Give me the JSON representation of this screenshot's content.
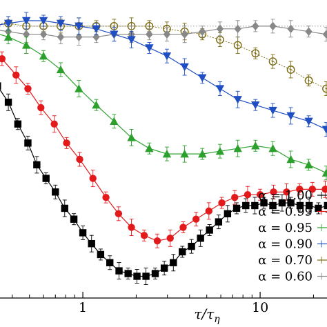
{
  "chart_data": {
    "type": "line",
    "xlabel": "τ/τ_η",
    "xlabel_main": "τ/τ",
    "xlabel_sub": "η",
    "x_scale": "log",
    "xlim": [
      0.28,
      28
    ],
    "y_scale": "linear",
    "ylim": [
      0,
      1.02
    ],
    "x_ticks": [
      1,
      10
    ],
    "x_tick_labels": [
      "1",
      "10"
    ],
    "reference_line": 0.88,
    "legend_position": "bottom-right",
    "series": [
      {
        "name": "α = 1.00",
        "color": "#000000",
        "marker": "square",
        "x": [
          0.3,
          0.33,
          0.38,
          0.43,
          0.49,
          0.55,
          0.62,
          0.7,
          0.79,
          0.89,
          1.0,
          1.12,
          1.26,
          1.42,
          1.6,
          1.8,
          2.02,
          2.27,
          2.56,
          2.88,
          3.24,
          3.64,
          4.1,
          4.61,
          5.18,
          5.83,
          6.55,
          7.37,
          8.3,
          9.33,
          10.5,
          11.8,
          13.3,
          14.9,
          16.8,
          18.9,
          21.3,
          24,
          27
        ],
        "y": [
          0.85,
          0.78,
          0.72,
          0.64,
          0.57,
          0.49,
          0.44,
          0.39,
          0.33,
          0.29,
          0.24,
          0.2,
          0.16,
          0.13,
          0.1,
          0.09,
          0.08,
          0.08,
          0.09,
          0.11,
          0.13,
          0.17,
          0.19,
          0.22,
          0.25,
          0.28,
          0.31,
          0.33,
          0.34,
          0.34,
          0.35,
          0.34,
          0.35,
          0.35,
          0.34,
          0.34,
          0.33,
          0.34,
          0.33
        ]
      },
      {
        "name": "α = 0.99",
        "color": "#e31a1c",
        "marker": "circle",
        "x": [
          0.3,
          0.35,
          0.42,
          0.49,
          0.58,
          0.69,
          0.81,
          0.96,
          1.14,
          1.35,
          1.59,
          1.88,
          2.22,
          2.63,
          3.11,
          3.68,
          4.35,
          5.14,
          6.08,
          7.19,
          8.5,
          10,
          11.9,
          14.1,
          16.7,
          19.7,
          23.3,
          27
        ],
        "y": [
          0.92,
          0.88,
          0.82,
          0.77,
          0.7,
          0.64,
          0.57,
          0.51,
          0.44,
          0.37,
          0.31,
          0.26,
          0.23,
          0.21,
          0.22,
          0.26,
          0.29,
          0.32,
          0.35,
          0.37,
          0.38,
          0.38,
          0.39,
          0.39,
          0.4,
          0.4,
          0.4,
          0.4
        ]
      },
      {
        "name": "α = 0.95",
        "color": "#2ca02c",
        "marker": "triangle",
        "x": [
          0.3,
          0.38,
          0.48,
          0.6,
          0.75,
          0.95,
          1.19,
          1.5,
          1.88,
          2.37,
          2.98,
          3.75,
          4.72,
          5.94,
          7.48,
          9.41,
          11.8,
          14.9,
          18.8,
          23.6,
          28
        ],
        "y": [
          0.98,
          0.96,
          0.93,
          0.89,
          0.84,
          0.77,
          0.71,
          0.65,
          0.59,
          0.55,
          0.53,
          0.53,
          0.53,
          0.54,
          0.55,
          0.56,
          0.55,
          0.51,
          0.49,
          0.46,
          0.45
        ]
      },
      {
        "name": "α = 0.90",
        "color": "#1f4ec2",
        "marker": "triangle-down",
        "x": [
          0.3,
          0.38,
          0.48,
          0.6,
          0.75,
          0.95,
          1.19,
          1.5,
          1.88,
          2.37,
          2.98,
          3.75,
          4.72,
          5.94,
          7.48,
          9.41,
          11.8,
          14.9,
          18.8,
          23.6
        ],
        "y": [
          1.0,
          1.01,
          1.02,
          1.02,
          1.01,
          1.0,
          0.99,
          0.97,
          0.95,
          0.92,
          0.89,
          0.85,
          0.81,
          0.77,
          0.73,
          0.71,
          0.69,
          0.67,
          0.65,
          0.62
        ]
      },
      {
        "name": "α = 0.70",
        "color": "#7a6a10",
        "marker": "open-circle",
        "x": [
          0.3,
          0.38,
          0.48,
          0.6,
          0.75,
          0.95,
          1.19,
          1.5,
          1.88,
          2.37,
          2.98,
          3.75,
          4.72,
          5.94,
          7.48,
          9.41,
          11.8,
          14.9,
          18.8,
          23.6
        ],
        "y": [
          1.01,
          1.01,
          1.0,
          1.0,
          1.0,
          1.0,
          1.0,
          1.0,
          1.0,
          1.0,
          0.99,
          0.98,
          0.97,
          0.95,
          0.93,
          0.9,
          0.87,
          0.84,
          0.8,
          0.77
        ]
      },
      {
        "name": "α = 0.60",
        "color": "#888888",
        "marker": "diamond",
        "x": [
          0.3,
          0.38,
          0.48,
          0.6,
          0.75,
          0.95,
          1.19,
          1.5,
          1.88,
          2.37,
          2.98,
          3.75,
          4.72,
          5.94,
          7.48,
          9.41,
          11.8,
          14.9,
          18.8,
          23.6
        ],
        "y": [
          0.99,
          0.98,
          0.97,
          0.97,
          0.96,
          0.96,
          0.96,
          0.97,
          0.97,
          0.97,
          0.97,
          0.97,
          0.98,
          0.99,
          0.99,
          1.0,
          1.0,
          0.99,
          0.98,
          0.97
        ]
      }
    ]
  }
}
